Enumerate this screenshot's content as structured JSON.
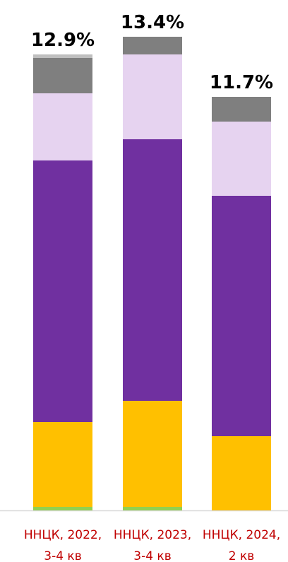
{
  "chart_data": {
    "type": "stacked_bar",
    "categories": [
      [
        "ННЦК, 2022,",
        "3-4 кв"
      ],
      [
        "ННЦК, 2023,",
        "3-4 кв"
      ],
      [
        "ННЦК, 2024,",
        "2 кв"
      ]
    ],
    "series": [
      {
        "color": "#92d050",
        "values": [
          0.1,
          0.1,
          0
        ]
      },
      {
        "color": "#ffc000",
        "values": [
          2.4,
          3.0,
          2.1
        ]
      },
      {
        "color": "#7030a0",
        "values": [
          7.4,
          7.4,
          6.8
        ]
      },
      {
        "color": "#e6d3f0",
        "values": [
          1.9,
          2.4,
          2.1
        ]
      },
      {
        "color": "#7f7f7f",
        "values": [
          1.0,
          0.5,
          0.7
        ]
      },
      {
        "color": "#bfbfbf",
        "values": [
          0.1,
          0,
          0
        ]
      }
    ],
    "totals": [
      12.9,
      13.4,
      11.7
    ],
    "total_labels": [
      "12.9%",
      "13.4%",
      "11.7%"
    ]
  }
}
